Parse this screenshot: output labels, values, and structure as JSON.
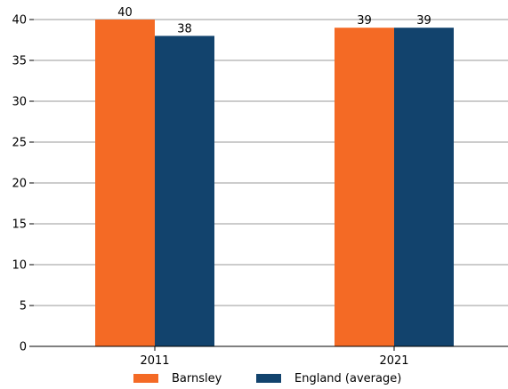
{
  "chart_data": {
    "type": "bar",
    "title": "",
    "xlabel": "",
    "ylabel": "",
    "categories": [
      "2011",
      "2021"
    ],
    "series": [
      {
        "name": "Barnsley",
        "values": [
          40,
          39
        ],
        "color": "#f46a25"
      },
      {
        "name": "England (average)",
        "values": [
          38,
          39
        ],
        "color": "#12436d"
      }
    ],
    "ylim": [
      0,
      40
    ],
    "yticks": [
      0,
      5,
      10,
      15,
      20,
      25,
      30,
      35,
      40
    ],
    "grid": "horizontal",
    "legend_position": "bottom"
  }
}
